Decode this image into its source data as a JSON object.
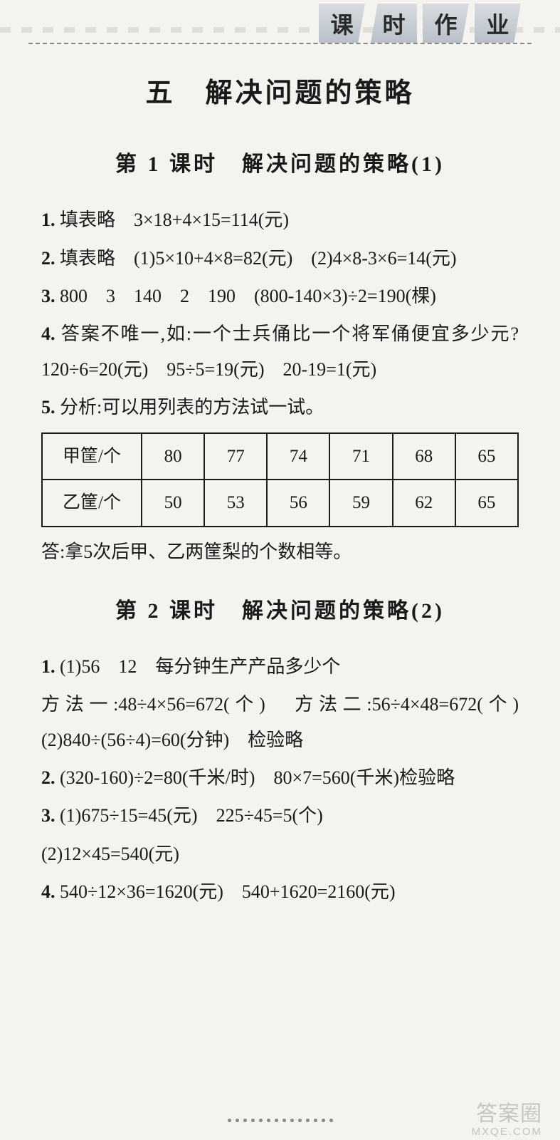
{
  "header": {
    "tabs": [
      "课",
      "时",
      "作",
      "业"
    ]
  },
  "chapter": {
    "title": "五　解决问题的策略"
  },
  "lesson1": {
    "title": "第 1 课时　解决问题的策略(1)",
    "items": {
      "i1": {
        "num": "1.",
        "text": "填表略　3×18+4×15=114(元)"
      },
      "i2": {
        "num": "2.",
        "text": "填表略　(1)5×10+4×8=82(元)　(2)4×8-3×6=14(元)"
      },
      "i3": {
        "num": "3.",
        "text": "800　3　140　2　190　(800-140×3)÷2=190(棵)"
      },
      "i4": {
        "num": "4.",
        "text": "答案不唯一,如:一个士兵俑比一个将军俑便宜多少元?　120÷6=20(元)　95÷5=19(元)　20-19=1(元)"
      },
      "i5": {
        "num": "5.",
        "text": "分析:可以用列表的方法试一试。"
      }
    },
    "table": {
      "row1": [
        "甲筐/个",
        "80",
        "77",
        "74",
        "71",
        "68",
        "65"
      ],
      "row2": [
        "乙筐/个",
        "50",
        "53",
        "56",
        "59",
        "62",
        "65"
      ]
    },
    "answer": "答:拿5次后甲、乙两筐梨的个数相等。"
  },
  "lesson2": {
    "title": "第 2 课时　解决问题的策略(2)",
    "items": {
      "i1": {
        "num": "1.",
        "text": "(1)56　12　每分钟生产产品多少个"
      },
      "i1b": "方法一:48÷4×56=672(个)　方法二:56÷4×48=672(个)　(2)840÷(56÷4)=60(分钟)　检验略",
      "i2": {
        "num": "2.",
        "text": "(320-160)÷2=80(千米/时)　80×7=560(千米)检验略"
      },
      "i3": {
        "num": "3.",
        "text": "(1)675÷15=45(元)　225÷45=5(个)"
      },
      "i3b": "(2)12×45=540(元)",
      "i4": {
        "num": "4.",
        "text": "540÷12×36=1620(元)　540+1620=2160(元)"
      }
    }
  },
  "watermark": {
    "main": "答案圈",
    "sub": "MXQE.COM"
  }
}
